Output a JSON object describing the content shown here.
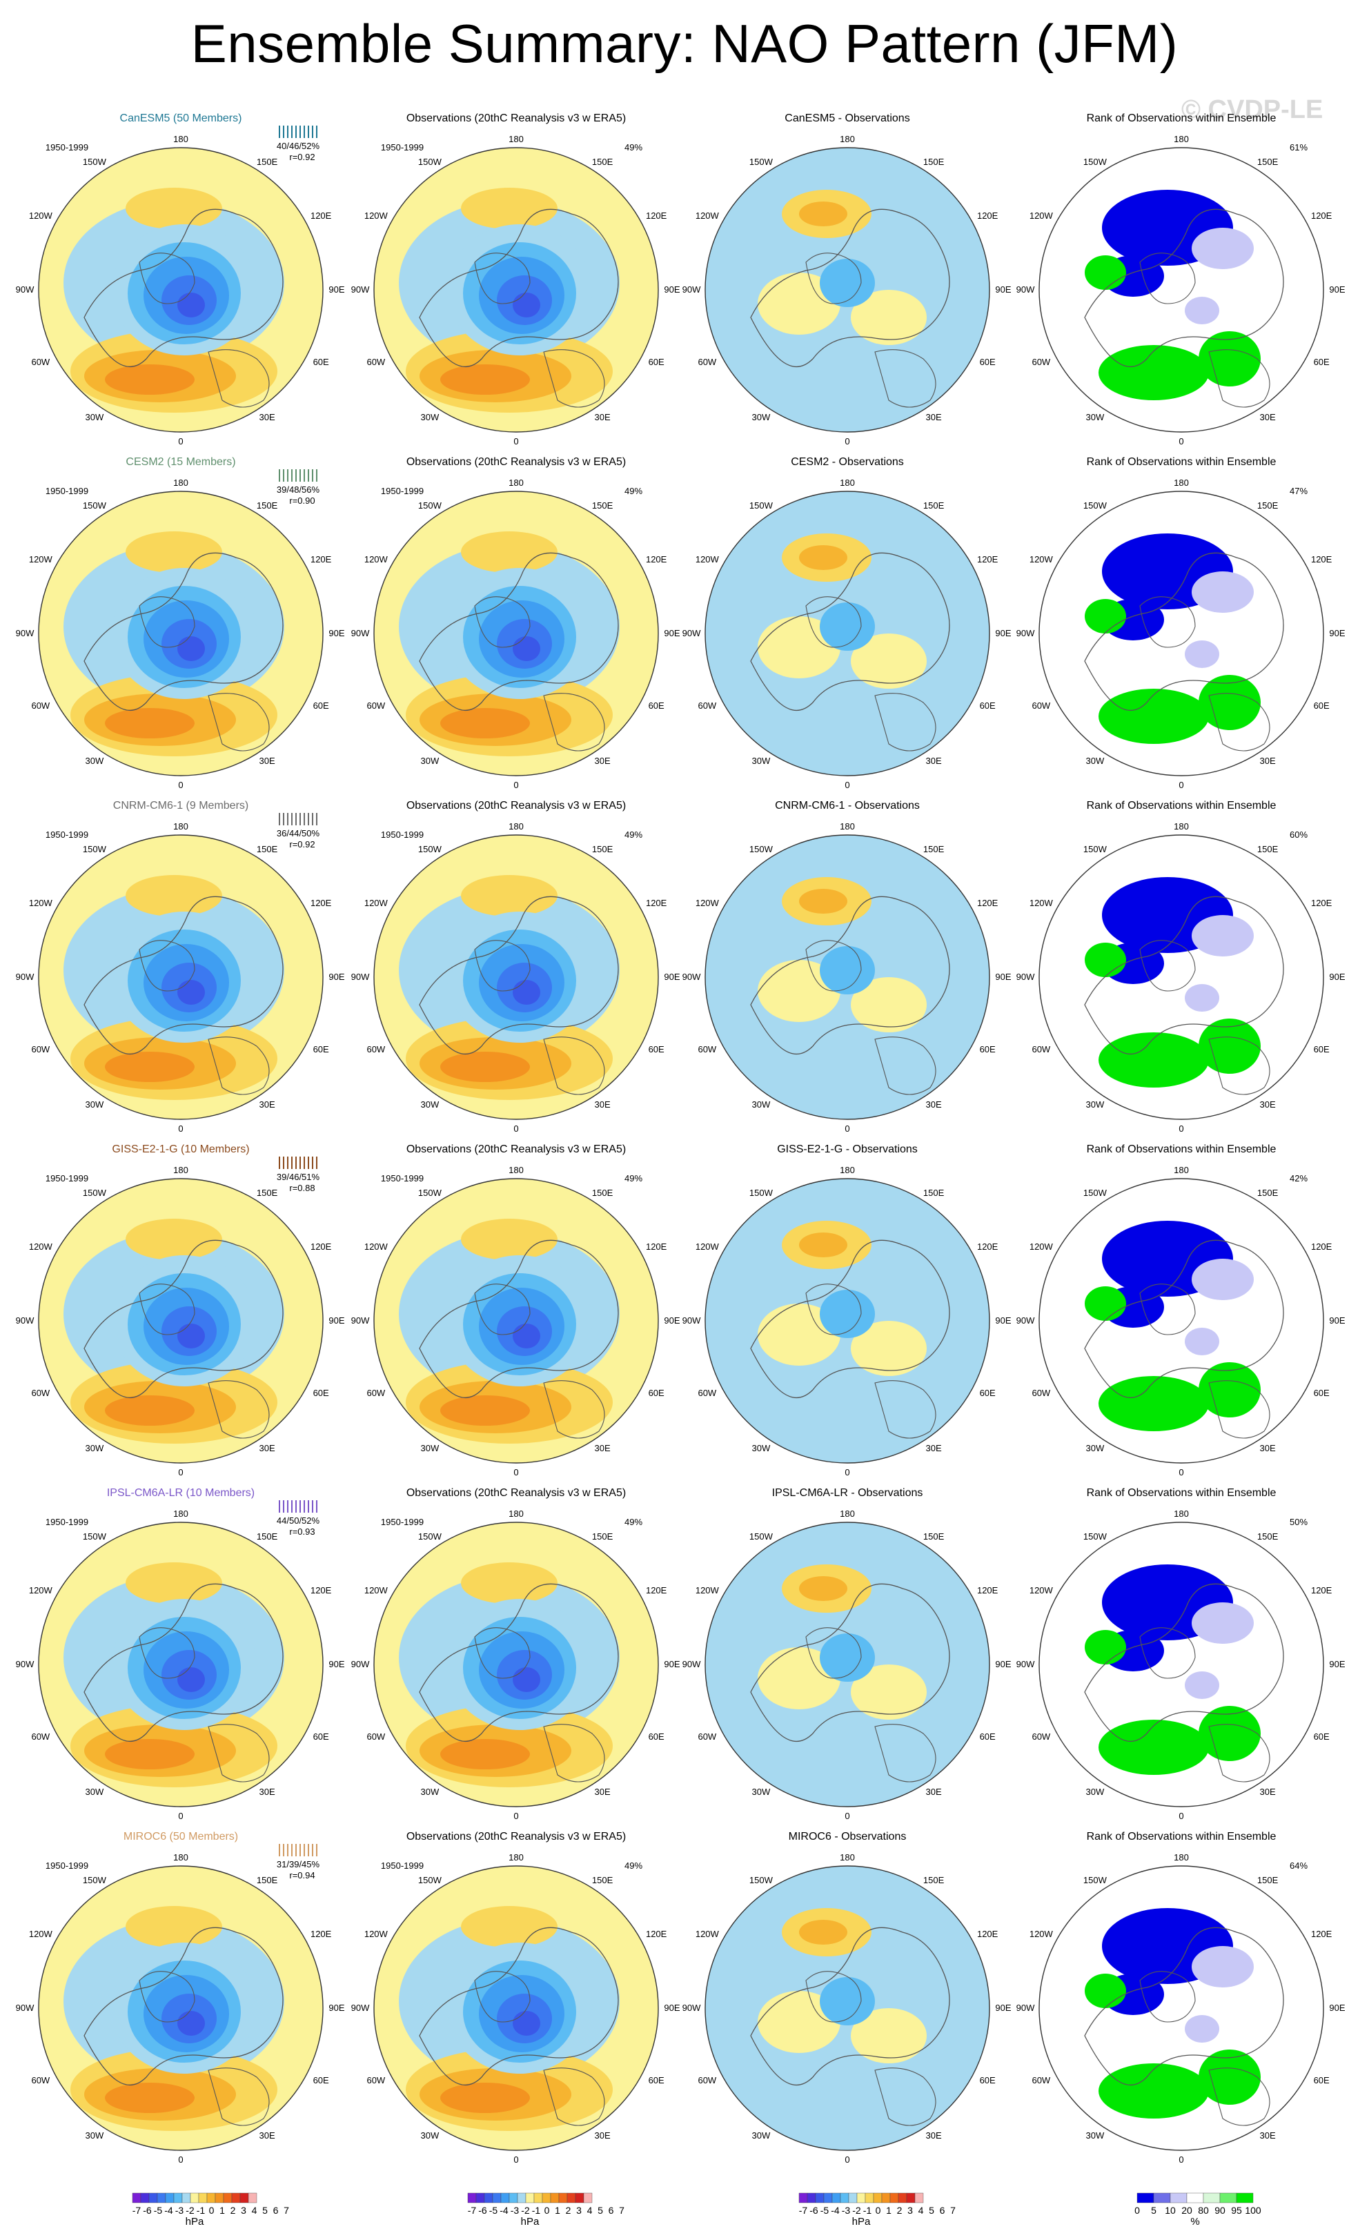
{
  "title": "Ensemble Summary: NAO Pattern (JFM)",
  "watermark": "© CVDP-LE",
  "colors": {
    "neg": [
      "#7a1fd6",
      "#4b2fdc",
      "#3a58e8",
      "#3c79f0",
      "#3f9ef2",
      "#5cbcf3",
      "#a7d9f0"
    ],
    "pos": [
      "#fbf39a",
      "#f9d75a",
      "#f6b430",
      "#f39320",
      "#ef6a1a",
      "#e3401d",
      "#d3211f",
      "#f7b3b3"
    ],
    "rank": [
      "#0000e6",
      "#6f6fe8",
      "#c8c8f6",
      "#ffffff",
      "#d8f7d8",
      "#6cf06c",
      "#00e600"
    ],
    "coast": "#555555"
  },
  "chart_data": {
    "type": "polar-map-panels",
    "period_label": "1950-1999",
    "longitude_labels": [
      "180",
      "150W",
      "150E",
      "120W",
      "120E",
      "90W",
      "90E",
      "60W",
      "60E",
      "30W",
      "30E",
      "0"
    ],
    "column_titles": {
      "obs": "Observations (20thC Reanalysis v3 w ERA5)",
      "rank": "Rank of Observations within Ensemble"
    },
    "rows": [
      {
        "model": "CanESM5",
        "header": "CanESM5 (50 Members)",
        "header_color": "#1f7894",
        "stats": "40/46/52%",
        "r": "r=0.92",
        "obs_pct": "49%",
        "diff_title": "CanESM5 - Observations",
        "rank_pct": "61%"
      },
      {
        "model": "CESM2",
        "header": "CESM2 (15 Members)",
        "header_color": "#5f8f6d",
        "stats": "39/48/56%",
        "r": "r=0.90",
        "obs_pct": "49%",
        "diff_title": "CESM2 - Observations",
        "rank_pct": "47%"
      },
      {
        "model": "CNRM-CM6-1",
        "header": "CNRM-CM6-1 (9 Members)",
        "header_color": "#6b6b6b",
        "stats": "36/44/50%",
        "r": "r=0.92",
        "obs_pct": "49%",
        "diff_title": "CNRM-CM6-1 - Observations",
        "rank_pct": "60%"
      },
      {
        "model": "GISS-E2-1-G",
        "header": "GISS-E2-1-G (10 Members)",
        "header_color": "#8c4b1e",
        "stats": "39/46/51%",
        "r": "r=0.88",
        "obs_pct": "49%",
        "diff_title": "GISS-E2-1-G - Observations",
        "rank_pct": "42%"
      },
      {
        "model": "IPSL-CM6A-LR",
        "header": "IPSL-CM6A-LR (10 Members)",
        "header_color": "#7a56c8",
        "stats": "44/50/52%",
        "r": "r=0.93",
        "obs_pct": "49%",
        "diff_title": "IPSL-CM6A-LR - Observations",
        "rank_pct": "50%"
      },
      {
        "model": "MIROC6",
        "header": "MIROC6 (50 Members)",
        "header_color": "#d09a62",
        "stats": "31/39/45%",
        "r": "r=0.94",
        "obs_pct": "49%",
        "diff_title": "MIROC6 - Observations",
        "rank_pct": "64%"
      }
    ],
    "colorbars": [
      {
        "kind": "hpa",
        "labels": [
          "-7",
          "-6",
          "-5",
          "-4",
          "-3",
          "-2",
          "-1",
          "0",
          "1",
          "2",
          "3",
          "4",
          "5",
          "6",
          "7"
        ],
        "unit": "hPa"
      },
      {
        "kind": "hpa",
        "labels": [
          "-7",
          "-6",
          "-5",
          "-4",
          "-3",
          "-2",
          "-1",
          "0",
          "1",
          "2",
          "3",
          "4",
          "5",
          "6",
          "7"
        ],
        "unit": "hPa"
      },
      {
        "kind": "hpa",
        "labels": [
          "-7",
          "-6",
          "-5",
          "-4",
          "-3",
          "-2",
          "-1",
          "0",
          "1",
          "2",
          "3",
          "4",
          "5",
          "6",
          "7"
        ],
        "unit": "hPa"
      },
      {
        "kind": "rank",
        "labels": [
          "0",
          "5",
          "10",
          "20",
          "80",
          "90",
          "95",
          "100"
        ],
        "unit": "%"
      }
    ]
  }
}
